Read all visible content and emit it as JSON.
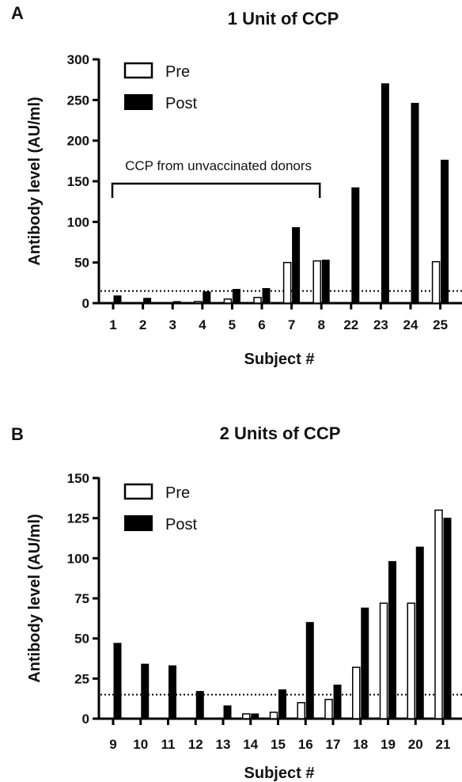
{
  "chart_data": [
    {
      "type": "bar",
      "panel": "A",
      "title": "1 Unit of CCP",
      "xlabel": "Subject #",
      "ylabel": "Antibody level (AU/ml)",
      "ylim": [
        0,
        300
      ],
      "yticks": [
        0,
        50,
        100,
        150,
        200,
        250,
        300
      ],
      "threshold": 15,
      "categories": [
        "1",
        "2",
        "3",
        "4",
        "5",
        "6",
        "7",
        "8",
        "22",
        "23",
        "24",
        "25"
      ],
      "series": [
        {
          "name": "Pre",
          "color": "#ffffff",
          "values": [
            0,
            0,
            0,
            2,
            5,
            7,
            50,
            52,
            0,
            0,
            0,
            51
          ]
        },
        {
          "name": "Post",
          "color": "#000000",
          "values": [
            9,
            6,
            2,
            14,
            17,
            18,
            93,
            53,
            142,
            270,
            246,
            176
          ]
        }
      ],
      "annotation": {
        "text": "CCP from unvaccinated donors",
        "from": "1",
        "to": "8"
      },
      "legend": "top-left"
    },
    {
      "type": "bar",
      "panel": "B",
      "title": "2 Units of CCP",
      "xlabel": "Subject #",
      "ylabel": "Antibody level (AU/ml)",
      "ylim": [
        0,
        150
      ],
      "yticks": [
        0,
        25,
        50,
        75,
        100,
        125,
        150
      ],
      "threshold": 15,
      "categories": [
        "9",
        "10",
        "11",
        "12",
        "13",
        "14",
        "15",
        "16",
        "17",
        "18",
        "19",
        "20",
        "21"
      ],
      "series": [
        {
          "name": "Pre",
          "color": "#ffffff",
          "values": [
            0,
            0,
            0,
            0,
            0,
            3,
            4,
            10,
            12,
            32,
            72,
            72,
            130
          ]
        },
        {
          "name": "Post",
          "color": "#000000",
          "values": [
            47,
            34,
            33,
            17,
            8,
            3,
            18,
            60,
            21,
            69,
            98,
            107,
            125
          ]
        }
      ],
      "legend": "top-left"
    }
  ]
}
